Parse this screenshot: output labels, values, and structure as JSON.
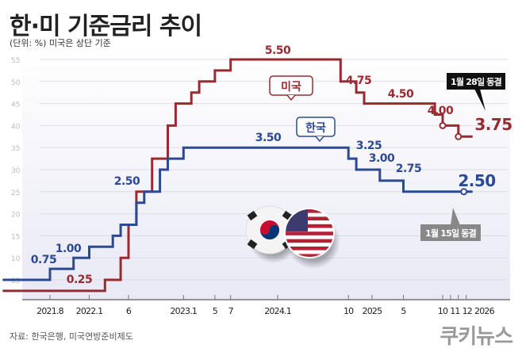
{
  "title": "한·미 기준금리 추이",
  "subtitle": "(단위: %) 미국은 상단 기준",
  "source": "자료: 한국은행, 미국연방준비제도",
  "watermark": "쿠키뉴스",
  "chart_data": {
    "type": "line",
    "step": true,
    "ylim": [
      0,
      5.75
    ],
    "y_ticks": [
      "05",
      "10",
      "15",
      "20",
      "25",
      "30",
      "35",
      "40",
      "45",
      "50",
      "55"
    ],
    "y_tick_values": [
      0.5,
      1.0,
      1.5,
      2.0,
      2.5,
      3.0,
      3.5,
      4.0,
      4.5,
      5.0,
      5.5
    ],
    "x_ticks": [
      {
        "date": "2021-08",
        "label": "2021.8"
      },
      {
        "date": "2022-01",
        "label": "2022.1"
      },
      {
        "date": "2022-06",
        "label": "6"
      },
      {
        "date": "2023-01",
        "label": "2023.1"
      },
      {
        "date": "2023-05",
        "label": "5"
      },
      {
        "date": "2023-07",
        "label": "7"
      },
      {
        "date": "2024-01",
        "label": "2024.1"
      },
      {
        "date": "2024-10",
        "label": "10"
      },
      {
        "date": "2025-01",
        "label": "2025"
      },
      {
        "date": "2025-05",
        "label": "5"
      },
      {
        "date": "2025-10",
        "label": "10"
      },
      {
        "date": "2025-11",
        "label": "11"
      },
      {
        "date": "2025-12",
        "label": "12"
      },
      {
        "date": "2026-01",
        "label": "2026"
      }
    ],
    "grid": true,
    "series": [
      {
        "name": "미국",
        "color": "#9b2a30",
        "points": [
          [
            "2021-05",
            0.25
          ],
          [
            "2022-03",
            0.5
          ],
          [
            "2022-05",
            1.0
          ],
          [
            "2022-06",
            1.75
          ],
          [
            "2022-07",
            2.5
          ],
          [
            "2022-09",
            3.25
          ],
          [
            "2022-11",
            4.0
          ],
          [
            "2022-12",
            4.5
          ],
          [
            "2023-02",
            4.75
          ],
          [
            "2023-03",
            5.0
          ],
          [
            "2023-05",
            5.25
          ],
          [
            "2023-07",
            5.5
          ],
          [
            "2024-09",
            5.0
          ],
          [
            "2024-11",
            4.75
          ],
          [
            "2024-12",
            4.5
          ],
          [
            "2025-09",
            4.25
          ],
          [
            "2025-10",
            4.0
          ],
          [
            "2025-12",
            3.75
          ],
          [
            "2026-01",
            3.75
          ]
        ],
        "labels": [
          "0.25",
          "5.50",
          "4.75",
          "4.50",
          "4.00",
          "3.75"
        ],
        "callout": "1월 28일 동결"
      },
      {
        "name": "한국",
        "color": "#2b4a93",
        "points": [
          [
            "2021-05",
            0.5
          ],
          [
            "2021-08",
            0.75
          ],
          [
            "2021-11",
            1.0
          ],
          [
            "2022-01",
            1.25
          ],
          [
            "2022-04",
            1.5
          ],
          [
            "2022-05",
            1.75
          ],
          [
            "2022-07",
            2.25
          ],
          [
            "2022-08",
            2.5
          ],
          [
            "2022-10",
            3.0
          ],
          [
            "2022-11",
            3.25
          ],
          [
            "2023-01",
            3.5
          ],
          [
            "2024-10",
            3.25
          ],
          [
            "2024-11",
            3.0
          ],
          [
            "2025-02",
            2.75
          ],
          [
            "2025-05",
            2.5
          ],
          [
            "2026-01",
            2.5
          ]
        ],
        "labels": [
          "0.75",
          "1.00",
          "2.50",
          "3.50",
          "3.25",
          "3.00",
          "2.75",
          "2.50"
        ],
        "callout": "1월 15일 동결"
      }
    ]
  }
}
